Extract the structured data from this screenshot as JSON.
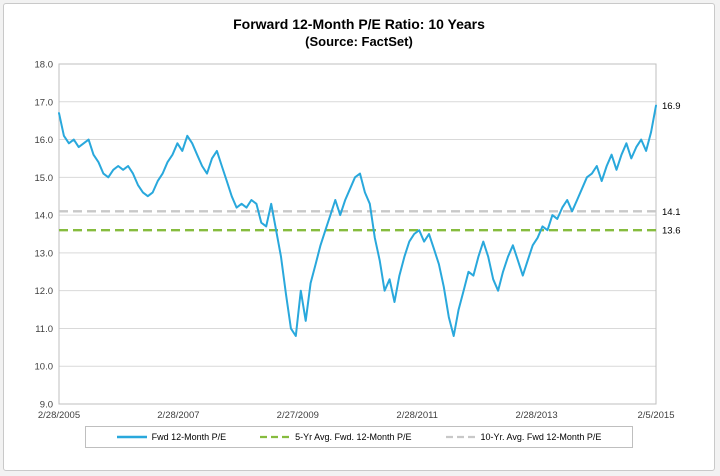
{
  "chart": {
    "title": "Forward 12-Month P/E Ratio: 10 Years",
    "subtitle": "(Source: FactSet)",
    "right_labels": [
      {
        "text": "16.9",
        "value": 16.9,
        "color": "#000000"
      },
      {
        "text": "14.1",
        "value": 14.1,
        "color": "#000000"
      },
      {
        "text": "13.6",
        "value": 13.6,
        "color": "#000000"
      }
    ],
    "colors": {
      "series_line": "#29a8dc",
      "five_yr_avg_line": "#86bc3e",
      "ten_yr_avg_line": "#c8c8c8",
      "gridline": "#d9d9d9",
      "plot_border": "#bfbfbf"
    }
  },
  "chart_data": {
    "type": "line",
    "title": "Forward 12-Month P/E Ratio: 10 Years",
    "subtitle": "(Source: FactSet)",
    "xlabel": "",
    "ylabel": "",
    "ylim": [
      9.0,
      18.0
    ],
    "ytick_step": 1.0,
    "grid": "horizontal",
    "legend_position": "bottom",
    "x_tick_labels": [
      "2/28/2005",
      "2/28/2007",
      "2/27/2009",
      "2/28/2011",
      "2/28/2013",
      "2/5/2015"
    ],
    "series": [
      {
        "name": "Fwd 12-Month P/E",
        "style": "solid",
        "color": "#29a8dc",
        "x_note": "monthly from 2/28/2005 to 2/5/2015",
        "values": [
          16.7,
          16.1,
          15.9,
          16.0,
          15.8,
          15.9,
          16.0,
          15.6,
          15.4,
          15.1,
          15.0,
          15.2,
          15.3,
          15.2,
          15.3,
          15.1,
          14.8,
          14.6,
          14.5,
          14.6,
          14.9,
          15.1,
          15.4,
          15.6,
          15.9,
          15.7,
          16.1,
          15.9,
          15.6,
          15.3,
          15.1,
          15.5,
          15.7,
          15.3,
          14.9,
          14.5,
          14.2,
          14.3,
          14.2,
          14.4,
          14.3,
          13.8,
          13.7,
          14.3,
          13.6,
          12.9,
          11.9,
          11.0,
          10.8,
          12.0,
          11.2,
          12.2,
          12.7,
          13.2,
          13.6,
          14.0,
          14.4,
          14.0,
          14.4,
          14.7,
          15.0,
          15.1,
          14.6,
          14.3,
          13.4,
          12.8,
          12.0,
          12.3,
          11.7,
          12.4,
          12.9,
          13.3,
          13.5,
          13.6,
          13.3,
          13.5,
          13.1,
          12.7,
          12.1,
          11.3,
          10.8,
          11.5,
          12.0,
          12.5,
          12.4,
          12.9,
          13.3,
          12.9,
          12.3,
          12.0,
          12.5,
          12.9,
          13.2,
          12.8,
          12.4,
          12.8,
          13.2,
          13.4,
          13.7,
          13.6,
          14.0,
          13.9,
          14.2,
          14.4,
          14.1,
          14.4,
          14.7,
          15.0,
          15.1,
          15.3,
          14.9,
          15.3,
          15.6,
          15.2,
          15.6,
          15.9,
          15.5,
          15.8,
          16.0,
          15.7,
          16.2,
          16.9
        ],
        "end_value_label": "16.9"
      },
      {
        "name": "5-Yr Avg. Fwd. 12-Month P/E",
        "style": "dashed",
        "color": "#86bc3e",
        "constant": 13.6,
        "end_value_label": "13.6"
      },
      {
        "name": "10-Yr. Avg. Fwd 12-Month P/E",
        "style": "dashed",
        "color": "#c8c8c8",
        "constant": 14.1,
        "end_value_label": "14.1"
      }
    ],
    "legend": [
      {
        "label": "Fwd 12-Month P/E",
        "color": "#29a8dc",
        "style": "solid"
      },
      {
        "label": "5-Yr Avg. Fwd. 12-Month P/E",
        "color": "#86bc3e",
        "style": "dashed"
      },
      {
        "label": "10-Yr. Avg. Fwd 12-Month P/E",
        "color": "#c8c8c8",
        "style": "dashed"
      }
    ]
  }
}
